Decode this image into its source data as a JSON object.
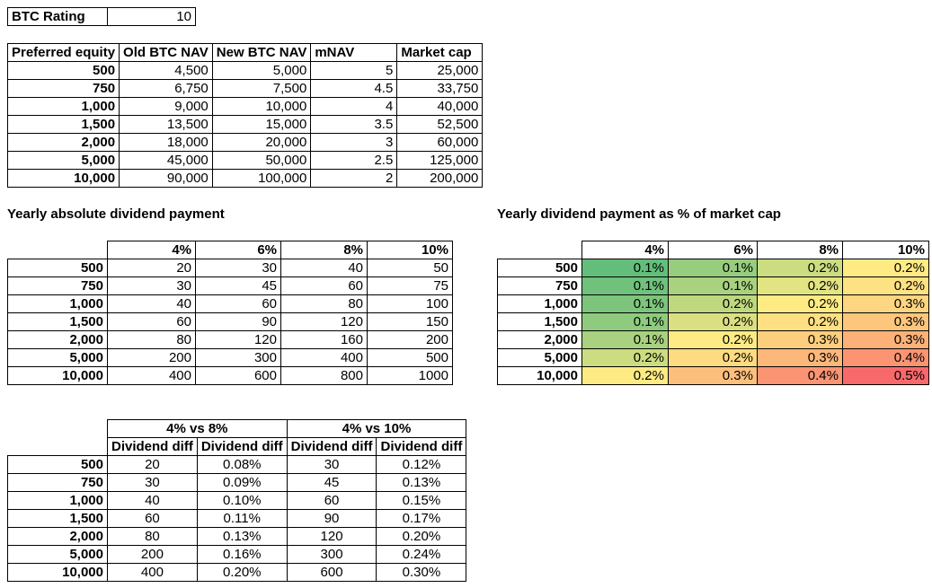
{
  "rating": {
    "label": "BTC Rating",
    "value": "10"
  },
  "nav_table": {
    "headers": [
      "Preferred equity",
      "Old BTC NAV",
      "New BTC NAV",
      "mNAV",
      "Market cap"
    ],
    "rows": [
      [
        "500",
        "4,500",
        "5,000",
        "5",
        "25,000"
      ],
      [
        "750",
        "6,750",
        "7,500",
        "4.5",
        "33,750"
      ],
      [
        "1,000",
        "9,000",
        "10,000",
        "4",
        "40,000"
      ],
      [
        "1,500",
        "13,500",
        "15,000",
        "3.5",
        "52,500"
      ],
      [
        "2,000",
        "18,000",
        "20,000",
        "3",
        "60,000"
      ],
      [
        "5,000",
        "45,000",
        "50,000",
        "2.5",
        "125,000"
      ],
      [
        "10,000",
        "90,000",
        "100,000",
        "2",
        "200,000"
      ]
    ]
  },
  "absolute_dividend": {
    "title": "Yearly absolute dividend payment",
    "col_headers": [
      "4%",
      "6%",
      "8%",
      "10%"
    ],
    "rows": [
      [
        "500",
        "20",
        "30",
        "40",
        "50"
      ],
      [
        "750",
        "30",
        "45",
        "60",
        "75"
      ],
      [
        "1,000",
        "40",
        "60",
        "80",
        "100"
      ],
      [
        "1,500",
        "60",
        "90",
        "120",
        "150"
      ],
      [
        "2,000",
        "80",
        "120",
        "160",
        "200"
      ],
      [
        "5,000",
        "200",
        "300",
        "400",
        "500"
      ],
      [
        "10,000",
        "400",
        "600",
        "800",
        "1000"
      ]
    ]
  },
  "percent_dividend": {
    "title": "Yearly dividend payment as % of market cap",
    "col_headers": [
      "4%",
      "6%",
      "8%",
      "10%"
    ],
    "rows": [
      [
        "500",
        "0.1%",
        "0.1%",
        "0.2%",
        "0.2%"
      ],
      [
        "750",
        "0.1%",
        "0.1%",
        "0.2%",
        "0.2%"
      ],
      [
        "1,000",
        "0.1%",
        "0.2%",
        "0.2%",
        "0.3%"
      ],
      [
        "1,500",
        "0.1%",
        "0.2%",
        "0.2%",
        "0.3%"
      ],
      [
        "2,000",
        "0.1%",
        "0.2%",
        "0.3%",
        "0.3%"
      ],
      [
        "5,000",
        "0.2%",
        "0.2%",
        "0.3%",
        "0.4%"
      ],
      [
        "10,000",
        "0.2%",
        "0.3%",
        "0.4%",
        "0.5%"
      ]
    ],
    "colors": [
      [
        "#63BE7B",
        "#97CD7E",
        "#CBDC81",
        "#FFEB84"
      ],
      [
        "#6FC17C",
        "#A8D27F",
        "#E2E382",
        "#FEE182"
      ],
      [
        "#7DC57C",
        "#BED880",
        "#FFEB84",
        "#FED580"
      ],
      [
        "#8FCB7E",
        "#DAE082",
        "#FEDF82",
        "#FDC67D"
      ],
      [
        "#A8D27F",
        "#FFEB84",
        "#FDCE7E",
        "#FCB179"
      ],
      [
        "#CBDC81",
        "#FEDA81",
        "#FCB77A",
        "#FA9473"
      ],
      [
        "#FFEB84",
        "#FDC07C",
        "#FA9473",
        "#F8696B"
      ]
    ],
    "scale": {
      "min_color": "#63BE7B",
      "mid_color": "#FFEB84",
      "max_color": "#F8696B"
    }
  },
  "diff_table": {
    "group_headers": [
      "4% vs 8%",
      "4% vs 10%"
    ],
    "sub_headers": [
      "Dividend diff",
      "Dividend diff",
      "Dividend diff",
      "Dividend diff"
    ],
    "rows": [
      [
        "500",
        "20",
        "0.08%",
        "30",
        "0.12%"
      ],
      [
        "750",
        "30",
        "0.09%",
        "45",
        "0.13%"
      ],
      [
        "1,000",
        "40",
        "0.10%",
        "60",
        "0.15%"
      ],
      [
        "1,500",
        "60",
        "0.11%",
        "90",
        "0.17%"
      ],
      [
        "2,000",
        "80",
        "0.13%",
        "120",
        "0.20%"
      ],
      [
        "5,000",
        "200",
        "0.16%",
        "300",
        "0.24%"
      ],
      [
        "10,000",
        "400",
        "0.20%",
        "600",
        "0.30%"
      ]
    ]
  }
}
